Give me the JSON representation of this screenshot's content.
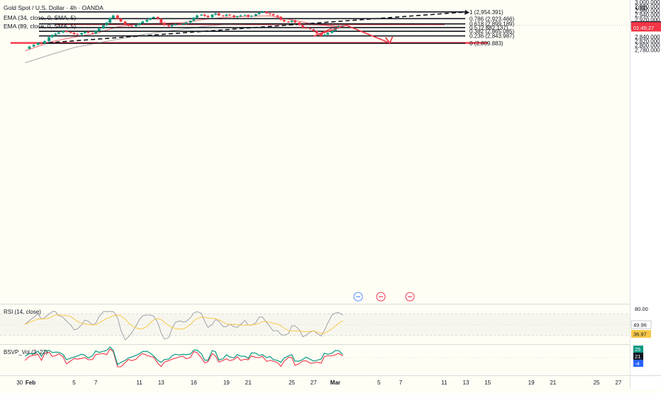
{
  "header": {
    "symbol": "Gold Spot / U.S. Dollar · 4h · OANDA",
    "ema1": "EMA (34, close, 0, SMA, 5)",
    "ema2": "EMA (89, close, 0, SMA, 5)"
  },
  "currency": "USD",
  "price_axis_ticks": [
    {
      "v": 3020,
      "t": "3,020.000"
    },
    {
      "v": 3000,
      "t": "3,000.000"
    },
    {
      "v": 2980,
      "t": "2,980.000"
    },
    {
      "v": 2960,
      "t": "2,960.000"
    },
    {
      "v": 2940,
      "t": "2,940.000"
    },
    {
      "v": 2920,
      "t": "2,920.000"
    },
    {
      "v": 2900,
      "t": "2,900.000"
    },
    {
      "v": 2840,
      "t": "2,840.000"
    },
    {
      "v": 2820,
      "t": "2,820.000"
    },
    {
      "v": 2800,
      "t": "2,800.000"
    },
    {
      "v": 2780,
      "t": "2,780.000"
    }
  ],
  "price_labels": [
    {
      "v": 2892.985,
      "t": "2,892.985",
      "bg": "#ffffff",
      "fg": "#131722"
    },
    {
      "v": 2891.834,
      "t": "2,891.834",
      "bg": "#131722",
      "fg": "#ffffff"
    },
    {
      "v": 2889.5,
      "t": "2,891.335",
      "bg": "#f23645",
      "fg": "#ffffff"
    },
    {
      "v": 2885.6,
      "t": "2,887.465",
      "bg": "#f23645",
      "fg": "#ffffff"
    },
    {
      "v": 2882.1,
      "t": "01:45:27",
      "bg": "#f23645",
      "fg": "#ffffff"
    }
  ],
  "time_axis": [
    {
      "d": -1,
      "t": "30"
    },
    {
      "d": 0,
      "t": "Feb"
    },
    {
      "d": 4,
      "t": "5"
    },
    {
      "d": 6,
      "t": "7"
    },
    {
      "d": 10,
      "t": "11"
    },
    {
      "d": 12,
      "t": "13"
    },
    {
      "d": 15,
      "t": "16"
    },
    {
      "d": 18,
      "t": "19"
    },
    {
      "d": 20,
      "t": "21"
    },
    {
      "d": 24,
      "t": "25"
    },
    {
      "d": 26,
      "t": "27"
    },
    {
      "d": 28,
      "t": "Mar"
    },
    {
      "d": 32,
      "t": "5"
    },
    {
      "d": 34,
      "t": "7"
    },
    {
      "d": 38,
      "t": "11"
    },
    {
      "d": 40,
      "t": "13"
    },
    {
      "d": 42,
      "t": "15"
    },
    {
      "d": 46,
      "t": "19"
    },
    {
      "d": 48,
      "t": "21"
    },
    {
      "d": 52,
      "t": "25"
    },
    {
      "d": 54,
      "t": "27"
    }
  ],
  "fib_levels": [
    {
      "label": "1 (2,954.391)",
      "value": 2954.391
    },
    {
      "label": "0.786 (2,923.466)",
      "value": 2923.466
    },
    {
      "label": "0.618 (2,899.189)",
      "value": 2899.189
    },
    {
      "label": "0.5 (2,882.137)",
      "value": 2882.137
    },
    {
      "label": "0.382 (2,865.085)",
      "value": 2865.085
    },
    {
      "label": "0.236 (2,843.987)",
      "value": 2843.987
    },
    {
      "label": "0 (2,809.883)",
      "value": 2809.883
    }
  ],
  "rsi": {
    "label": "RSI (14, close)",
    "value": "49.96",
    "ma_value": "36.97",
    "ticks": [
      "80.00"
    ]
  },
  "bsvp": {
    "label": "BSVP_Vol (3, 27)",
    "values": [
      "25",
      "21",
      "-4"
    ]
  },
  "colors": {
    "up": "#089981",
    "down": "#f23645",
    "ema_fast": "#f23645",
    "ema_slow": "#9e9e9e",
    "rsi_line": "#7e57c2",
    "rsi_ma": "#f7c948",
    "zone": "#f23645",
    "arrow": "#f23645"
  },
  "chart_data": {
    "type": "candlestick",
    "title": "Gold Spot / U.S. Dollar · 4h · OANDA",
    "x_unit": "days since Jan 31",
    "y_range": [
      2765,
      3030
    ],
    "grid": false,
    "closes": [
      [
        -0.5,
        2785
      ],
      [
        -0.1,
        2795
      ],
      [
        0.3,
        2803
      ],
      [
        0.7,
        2812
      ],
      [
        1.0,
        2808
      ],
      [
        1.3,
        2820
      ],
      [
        1.7,
        2838
      ],
      [
        2.0,
        2848
      ],
      [
        2.3,
        2854
      ],
      [
        2.6,
        2860
      ],
      [
        3.0,
        2866
      ],
      [
        3.3,
        2862
      ],
      [
        3.7,
        2858
      ],
      [
        4.0,
        2852
      ],
      [
        4.3,
        2850
      ],
      [
        4.7,
        2857
      ],
      [
        5.0,
        2863
      ],
      [
        5.3,
        2858
      ],
      [
        5.7,
        2855
      ],
      [
        6.0,
        2866
      ],
      [
        6.3,
        2878
      ],
      [
        6.7,
        2893
      ],
      [
        7.0,
        2905
      ],
      [
        7.3,
        2925
      ],
      [
        7.6,
        2938
      ],
      [
        8.0,
        2922
      ],
      [
        8.3,
        2910
      ],
      [
        8.7,
        2898
      ],
      [
        9.0,
        2890
      ],
      [
        9.3,
        2888
      ],
      [
        9.7,
        2894
      ],
      [
        10.0,
        2902
      ],
      [
        10.3,
        2910
      ],
      [
        10.7,
        2918
      ],
      [
        11.0,
        2926
      ],
      [
        11.3,
        2931
      ],
      [
        11.7,
        2922
      ],
      [
        12.0,
        2904
      ],
      [
        12.3,
        2893
      ],
      [
        12.7,
        2888
      ],
      [
        13.0,
        2893
      ],
      [
        13.3,
        2898
      ],
      [
        13.7,
        2897
      ],
      [
        14.0,
        2899
      ],
      [
        14.3,
        2905
      ],
      [
        14.7,
        2914
      ],
      [
        15.0,
        2928
      ],
      [
        15.3,
        2938
      ],
      [
        15.7,
        2942
      ],
      [
        16.0,
        2936
      ],
      [
        16.3,
        2930
      ],
      [
        16.7,
        2942
      ],
      [
        17.0,
        2948
      ],
      [
        17.3,
        2938
      ],
      [
        17.7,
        2936
      ],
      [
        18.0,
        2942
      ],
      [
        18.3,
        2938
      ],
      [
        18.7,
        2930
      ],
      [
        19.0,
        2934
      ],
      [
        19.3,
        2938
      ],
      [
        19.7,
        2940
      ],
      [
        20.0,
        2932
      ],
      [
        20.3,
        2936
      ],
      [
        20.7,
        2944
      ],
      [
        21.0,
        2950
      ],
      [
        21.3,
        2955
      ],
      [
        21.7,
        2948
      ],
      [
        22.0,
        2944
      ],
      [
        22.3,
        2938
      ],
      [
        22.7,
        2932
      ],
      [
        23.0,
        2918
      ],
      [
        23.3,
        2910
      ],
      [
        23.7,
        2908
      ],
      [
        24.0,
        2914
      ],
      [
        24.3,
        2906
      ],
      [
        24.7,
        2894
      ],
      [
        25.0,
        2882
      ],
      [
        25.3,
        2878
      ],
      [
        25.7,
        2874
      ],
      [
        26.0,
        2866
      ],
      [
        26.3,
        2855
      ],
      [
        26.7,
        2844
      ],
      [
        27.0,
        2850
      ],
      [
        27.3,
        2858
      ],
      [
        27.7,
        2868
      ],
      [
        28.0,
        2879
      ],
      [
        28.3,
        2888
      ],
      [
        28.7,
        2892
      ]
    ],
    "ema_fast": [
      [
        -0.5,
        2775
      ],
      [
        2,
        2818
      ],
      [
        4,
        2838
      ],
      [
        6,
        2855
      ],
      [
        8,
        2886
      ],
      [
        10,
        2898
      ],
      [
        12,
        2902
      ],
      [
        14,
        2905
      ],
      [
        16,
        2920
      ],
      [
        18,
        2930
      ],
      [
        20,
        2934
      ],
      [
        22,
        2936
      ],
      [
        24,
        2918
      ],
      [
        26,
        2898
      ],
      [
        28,
        2887
      ],
      [
        28.7,
        2888
      ]
    ],
    "ema_slow": [
      [
        -0.5,
        2720
      ],
      [
        2,
        2760
      ],
      [
        4,
        2790
      ],
      [
        6,
        2810
      ],
      [
        8,
        2828
      ],
      [
        10,
        2848
      ],
      [
        12,
        2862
      ],
      [
        14,
        2875
      ],
      [
        16,
        2888
      ],
      [
        18,
        2896
      ],
      [
        20,
        2898
      ],
      [
        22,
        2898
      ],
      [
        24,
        2896
      ],
      [
        26,
        2893
      ],
      [
        28,
        2891
      ],
      [
        28.7,
        2890
      ]
    ],
    "trendline": {
      "from": [
        1.0,
        2810
      ],
      "to": [
        40.0,
        2954
      ]
    },
    "zones": [
      {
        "from_day": 2.3,
        "to_day": 38.0,
        "low": 2896,
        "high": 2900
      },
      {
        "from_day": -1.8,
        "to_day": 42.0,
        "low": 2809.5,
        "high": 2813.5
      }
    ],
    "projection_arrow": [
      [
        27.7,
        2879
      ],
      [
        26.0,
        2842
      ],
      [
        29.0,
        2893
      ],
      [
        33.0,
        2811
      ]
    ]
  }
}
